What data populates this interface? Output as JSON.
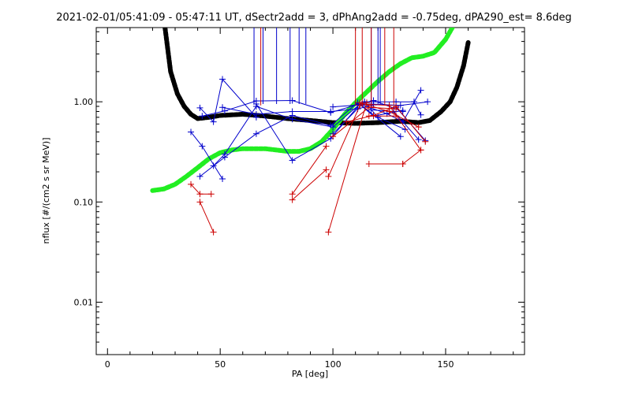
{
  "chart_data": {
    "type": "line",
    "title": "2021-02-01/05:41:09 - 05:47:11 UT, dSectr2add = 3, dPhAng2add = -0.75deg, dPA290_est=   8.6deg",
    "xlabel": "PA [deg]",
    "ylabel": "nflux [#/(cm2 s sr MeV)]",
    "xlim": [
      -5,
      185
    ],
    "ylim": [
      0.003,
      5.5
    ],
    "yscale": "log",
    "xticks": [
      0,
      50,
      100,
      150
    ],
    "xtick_labels": [
      "0",
      "50",
      "100",
      "150"
    ],
    "yticks": [
      0.01,
      0.1,
      1.0
    ],
    "ytick_labels": [
      "0.01",
      "0.10",
      "1.00"
    ],
    "grid": false,
    "colors": {
      "blue": "#0000cc",
      "red": "#cc0000",
      "black": "#000000",
      "green": "#22ee22"
    },
    "series": [
      {
        "style": "thick-dashed-black",
        "x": [
          25.5,
          28,
          31,
          34,
          37,
          40,
          45,
          50,
          60,
          70,
          80,
          90,
          100,
          110,
          120,
          130,
          138,
          143,
          148,
          152,
          155,
          158,
          160
        ],
        "y": [
          5.5,
          2.0,
          1.2,
          0.9,
          0.75,
          0.68,
          0.7,
          0.73,
          0.75,
          0.72,
          0.68,
          0.65,
          0.62,
          0.61,
          0.62,
          0.64,
          0.62,
          0.65,
          0.8,
          1.0,
          1.4,
          2.3,
          3.9
        ]
      },
      {
        "style": "thick-dashed-green",
        "x": [
          20,
          25,
          30,
          35,
          40,
          45,
          50,
          55,
          60,
          65,
          70,
          75,
          80,
          85,
          90,
          95,
          100,
          105,
          110,
          115,
          120,
          125,
          130,
          135,
          140,
          145,
          150,
          153
        ],
        "y": [
          0.13,
          0.135,
          0.15,
          0.18,
          0.22,
          0.27,
          0.31,
          0.33,
          0.34,
          0.34,
          0.34,
          0.33,
          0.32,
          0.32,
          0.34,
          0.4,
          0.53,
          0.74,
          0.98,
          1.25,
          1.6,
          2.0,
          2.4,
          2.75,
          2.85,
          3.1,
          4.2,
          5.5
        ]
      },
      {
        "style": "blue-thin",
        "segments": [
          {
            "x": [
              37,
              42,
              51
            ],
            "y": [
              0.5,
              0.36,
              0.17
            ]
          },
          {
            "x": [
              41,
              47,
              51,
              66
            ],
            "y": [
              0.87,
              0.63,
              1.68,
              0.7
            ]
          },
          {
            "x": [
              47,
              52,
              66,
              82,
              100,
              112,
              130
            ],
            "y": [
              0.23,
              0.3,
              0.9,
              0.67,
              0.56,
              0.95,
              0.45
            ]
          },
          {
            "x": [
              51,
              66,
              82,
              99,
              111,
              118
            ],
            "y": [
              0.88,
              0.75,
              0.8,
              0.8,
              0.85,
              0.93
            ]
          },
          {
            "x": [
              42,
              52,
              66,
              82,
              99,
              111,
              118,
              131
            ],
            "y": [
              0.72,
              0.81,
              1.02,
              1.03,
              0.78,
              0.94,
              1.03,
              0.8
            ]
          },
          {
            "x": [
              41,
              52,
              66,
              82,
              99,
              111,
              118,
              131
            ],
            "y": [
              0.18,
              0.28,
              0.48,
              0.73,
              0.58,
              0.98,
              0.72,
              0.82
            ]
          },
          {
            "x": [
              66,
              82,
              99,
              112,
              124,
              131,
              139
            ],
            "y": [
              0.95,
              0.26,
              0.43,
              0.95,
              0.76,
              0.63,
              1.3
            ]
          },
          {
            "x": [
              100,
              114,
              128,
              136,
              139
            ],
            "y": [
              0.48,
              1.0,
              1.0,
              1.0,
              0.74
            ]
          },
          {
            "x": [
              100,
              117,
              130,
              142
            ],
            "y": [
              0.89,
              0.95,
              0.92,
              1.0
            ]
          },
          {
            "x": [
              114,
              120,
              132
            ],
            "y": [
              1.0,
              0.7,
              0.53
            ]
          },
          {
            "x": [
              117,
              127,
              138
            ],
            "y": [
              0.83,
              0.8,
              0.42
            ]
          },
          {
            "x": [
              128,
              141
            ],
            "y": [
              0.88,
              0.41
            ]
          }
        ]
      },
      {
        "style": "red-thin",
        "segments": [
          {
            "x": [
              37,
              41,
              46
            ],
            "y": [
              0.15,
              0.12,
              0.12
            ]
          },
          {
            "x": [
              41,
              47
            ],
            "y": [
              0.1,
              0.05
            ]
          },
          {
            "x": [
              82,
              97
            ],
            "y": [
              0.12,
              0.36
            ]
          },
          {
            "x": [
              82,
              97
            ],
            "y": [
              0.105,
              0.21
            ]
          },
          {
            "x": [
              98,
              112
            ],
            "y": [
              0.18,
              0.92
            ]
          },
          {
            "x": [
              98,
              115
            ],
            "y": [
              0.05,
              0.98
            ]
          },
          {
            "x": [
              100,
              116,
              128
            ],
            "y": [
              0.45,
              0.88,
              0.85
            ]
          },
          {
            "x": [
              106,
              118,
              128,
              141
            ],
            "y": [
              0.63,
              0.73,
              0.9,
              0.4
            ]
          },
          {
            "x": [
              112,
              125,
              138
            ],
            "y": [
              0.98,
              0.8,
              0.56
            ]
          },
          {
            "x": [
              116,
              131
            ],
            "y": [
              0.24,
              0.24
            ]
          },
          {
            "x": [
              131,
              139
            ],
            "y": [
              0.24,
              0.33
            ]
          },
          {
            "x": [
              113,
              125,
              139
            ],
            "y": [
              0.95,
              0.92,
              0.33
            ]
          },
          {
            "x": [
              116,
              128
            ],
            "y": [
              0.72,
              0.72
            ]
          }
        ]
      },
      {
        "style": "blue-vertical-lines",
        "x": [
          65,
          69,
          75,
          81,
          85,
          88,
          117,
          120,
          121
        ],
        "y_bottom": [
          0.95,
          0.95,
          0.95,
          0.95,
          0.95,
          0.95,
          0.95,
          0.95,
          0.95
        ]
      },
      {
        "style": "red-vertical-lines",
        "x": [
          68,
          110,
          113,
          117,
          123,
          127
        ],
        "y_bottom": [
          0.92,
          0.92,
          0.92,
          0.92,
          0.92,
          0.92
        ]
      }
    ]
  }
}
